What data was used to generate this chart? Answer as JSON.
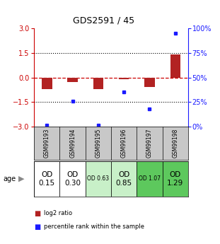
{
  "title": "GDS2591 / 45",
  "samples": [
    "GSM99193",
    "GSM99194",
    "GSM99195",
    "GSM99196",
    "GSM99197",
    "GSM99198"
  ],
  "log2_ratio": [
    -0.72,
    -0.28,
    -0.72,
    -0.1,
    -0.58,
    1.4
  ],
  "percentile_rank": [
    2.0,
    26.0,
    2.0,
    35.0,
    18.0,
    95.0
  ],
  "ylim": [
    -3,
    3
  ],
  "yticks_left": [
    -3,
    -1.5,
    0,
    1.5,
    3
  ],
  "bar_color": "#b22222",
  "dot_color": "#1a1aff",
  "od_values": [
    "OD\n0.15",
    "OD\n0.30",
    "OD 0.63",
    "OD\n0.85",
    "OD 1.07",
    "OD\n1.29"
  ],
  "od_colors": [
    "#ffffff",
    "#ffffff",
    "#c8f0c8",
    "#c8f0c8",
    "#5dc85d",
    "#5dc85d"
  ],
  "od_fontsize_large": 7.5,
  "od_fontsize_small": 5.5,
  "od_large": [
    true,
    true,
    false,
    true,
    false,
    true
  ],
  "row_label": "age",
  "legend_log2": "log2 ratio",
  "legend_pct": "percentile rank within the sample",
  "bg_color": "#ffffff",
  "sample_row_color": "#c8c8c8",
  "title_fontsize": 9,
  "tick_fontsize": 7
}
